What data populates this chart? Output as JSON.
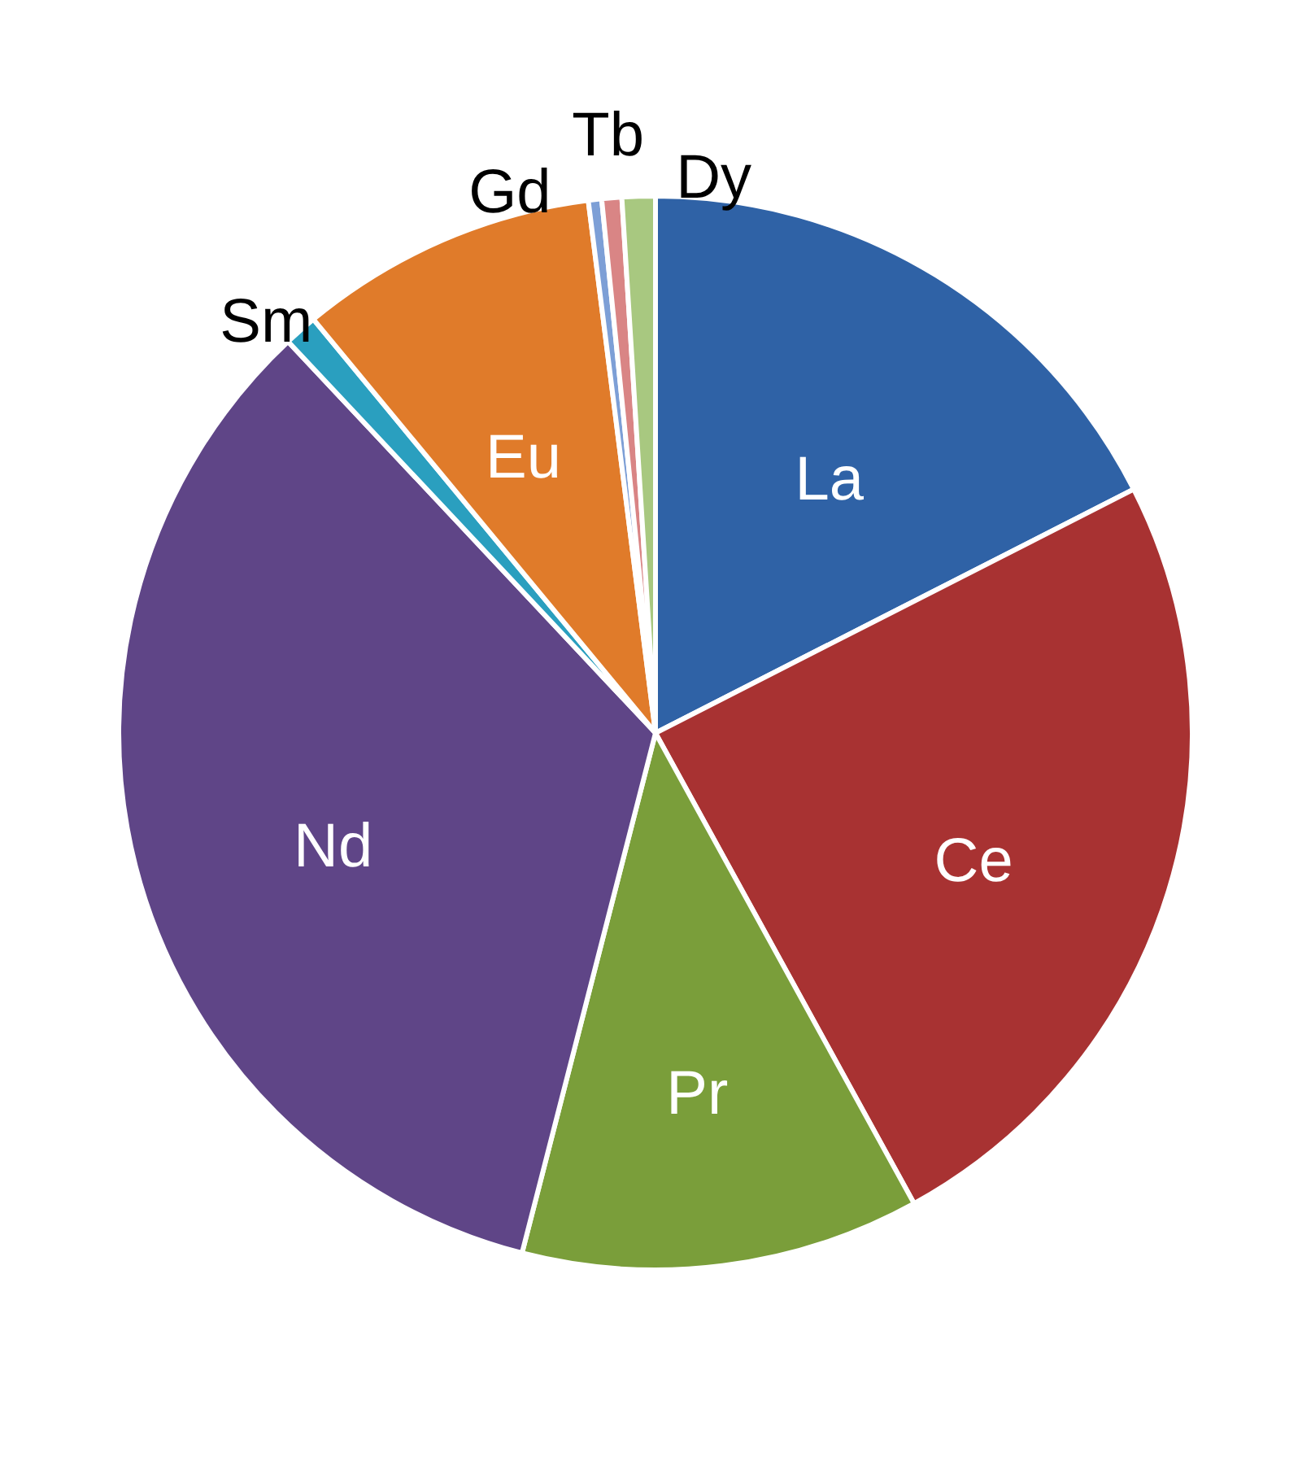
{
  "chart_data": {
    "type": "pie",
    "categories": [
      "La",
      "Ce",
      "Pr",
      "Nd",
      "Sm",
      "Eu",
      "Gd",
      "Tb",
      "Dy"
    ],
    "values": [
      17.5,
      24.5,
      12,
      34,
      1,
      9,
      0.4,
      0.6,
      1
    ],
    "colors": [
      "#2f62a6",
      "#a83232",
      "#7a9e3a",
      "#5f4587",
      "#2a9fbf",
      "#e07b2a",
      "#7d9fd6",
      "#d98585",
      "#a8c880"
    ]
  }
}
